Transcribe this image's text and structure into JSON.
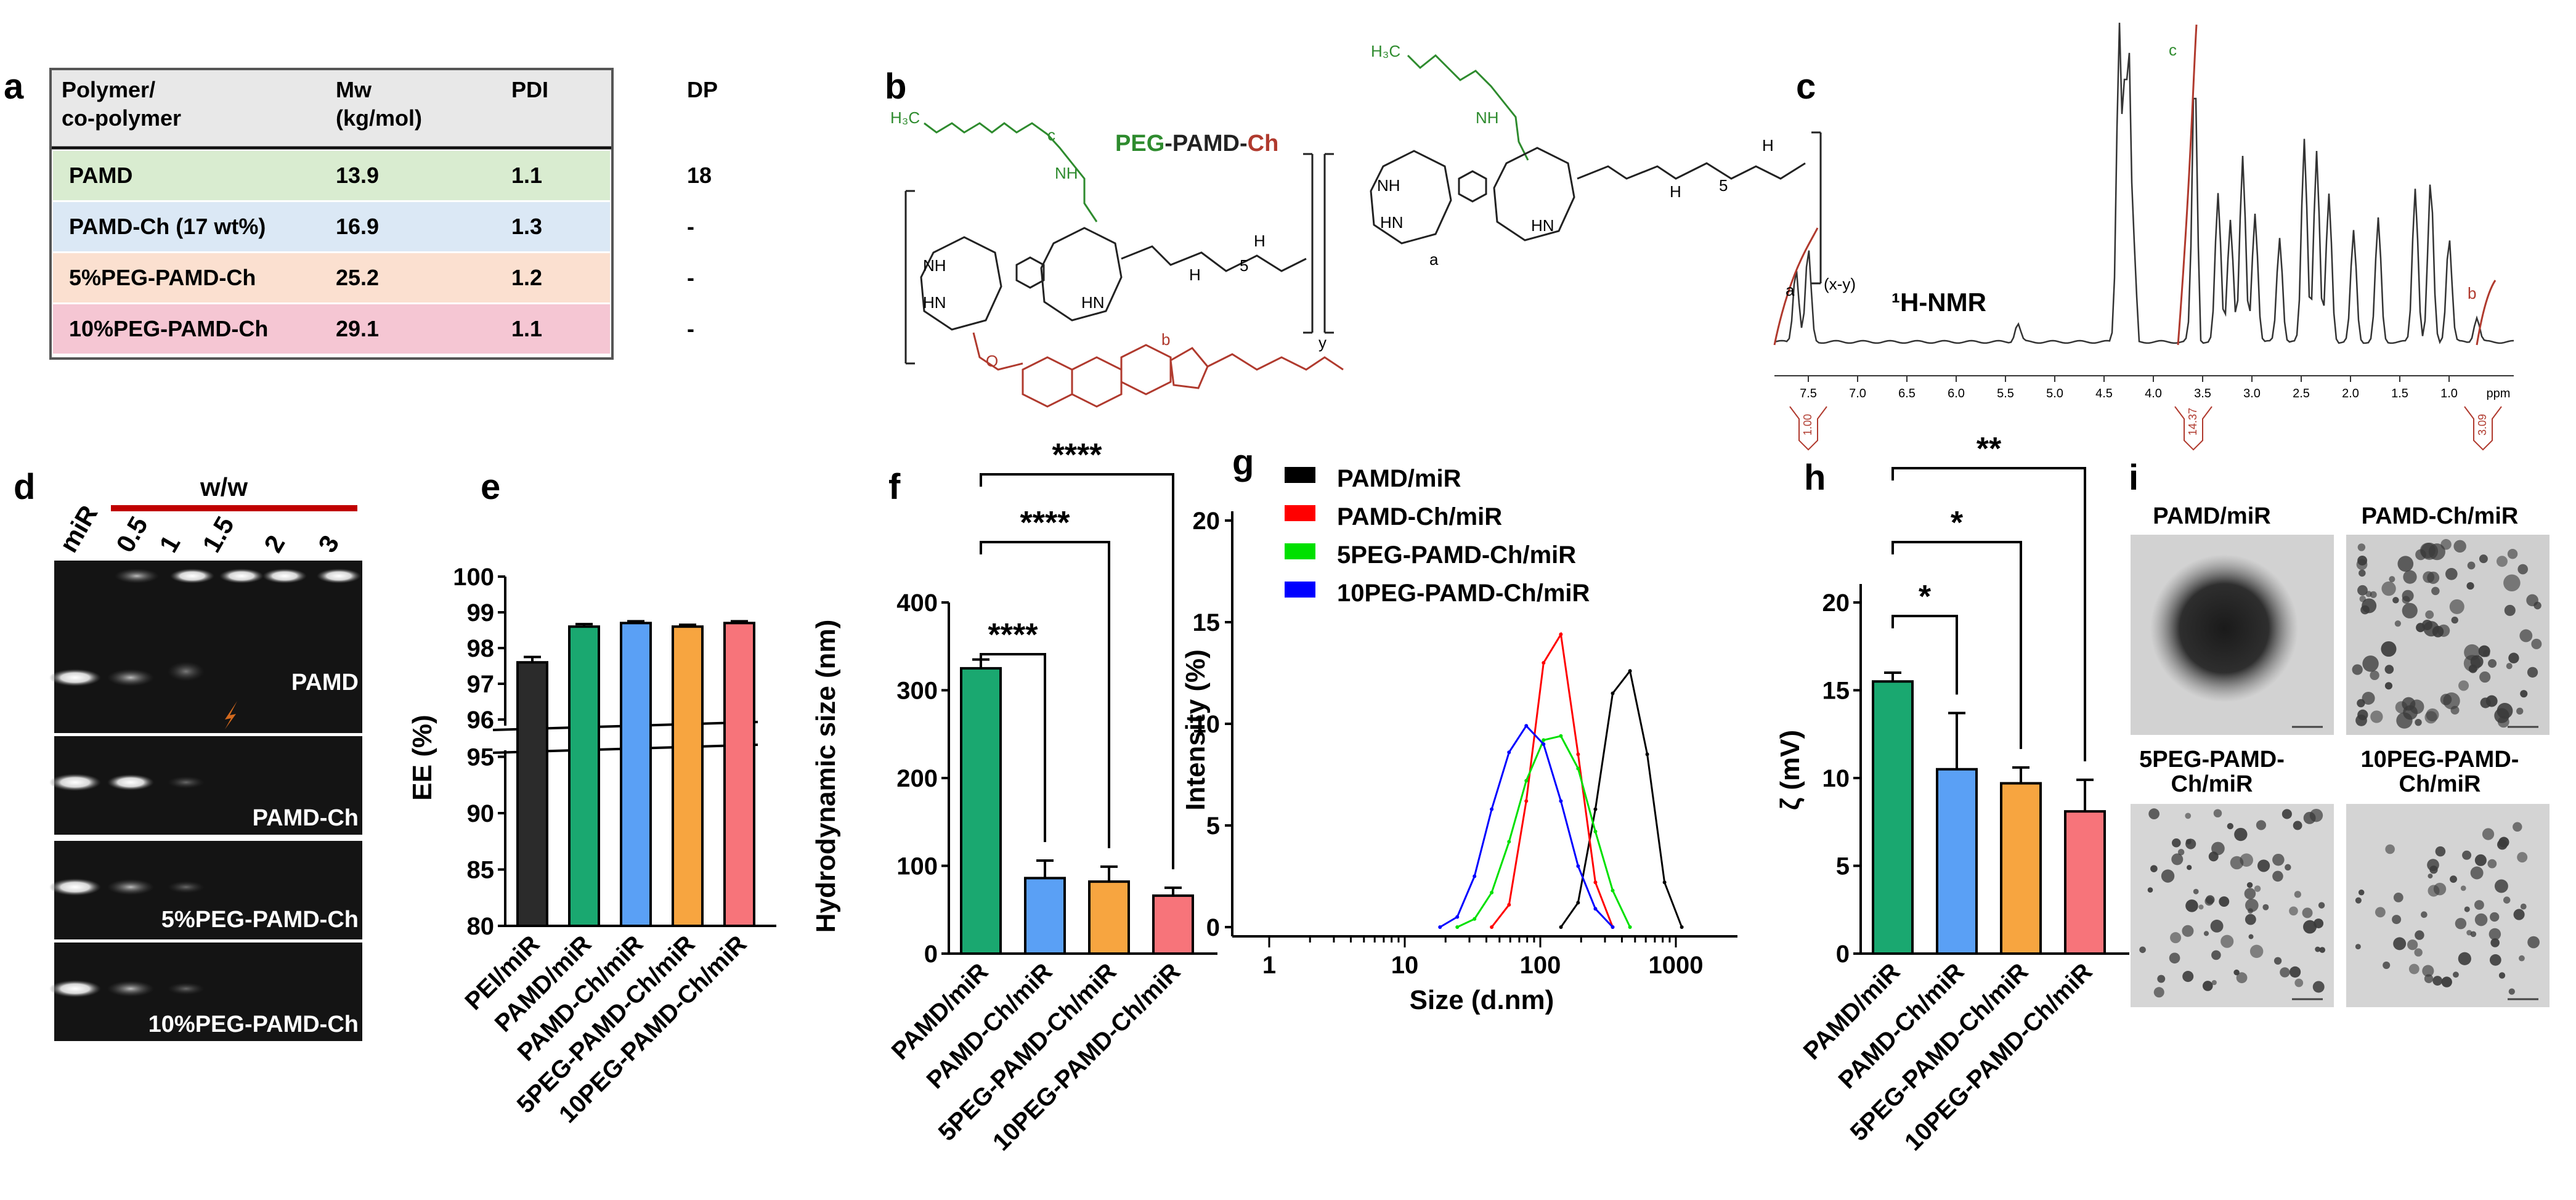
{
  "panels": {
    "a": {
      "letter": "a"
    },
    "b": {
      "letter": "b"
    },
    "c": {
      "letter": "c"
    },
    "d": {
      "letter": "d"
    },
    "e": {
      "letter": "e"
    },
    "f": {
      "letter": "f"
    },
    "g": {
      "letter": "g"
    },
    "h": {
      "letter": "h"
    },
    "i": {
      "letter": "i"
    }
  },
  "table": {
    "headers": [
      [
        "Polymer/",
        "co-polymer"
      ],
      [
        "Mw",
        "(kg/mol)"
      ],
      [
        "PDI"
      ],
      [
        "DP"
      ]
    ],
    "rows": [
      {
        "cells": [
          "PAMD",
          "13.9",
          "1.1",
          "18"
        ],
        "color": "#d9ecd0"
      },
      {
        "cells": [
          "PAMD-Ch (17 wt%)",
          "16.9",
          "1.3",
          "-"
        ],
        "color": "#dbe8f5"
      },
      {
        "cells": [
          "5%PEG-PAMD-Ch",
          "25.2",
          "1.2",
          "-"
        ],
        "color": "#fbe0d0"
      },
      {
        "cells": [
          "10%PEG-PAMD-Ch",
          "29.1",
          "1.1",
          "-"
        ],
        "color": "#f5c6d3"
      }
    ]
  },
  "structure": {
    "title_peg": "PEG",
    "title_mid": "-PAMD-",
    "title_ch": "Ch",
    "label_a": "a",
    "label_b": "b",
    "label_c": "c",
    "sub_y": "y",
    "sub_xy": "(x-y)",
    "sub_5": "5",
    "peg_h3c": "H₃C",
    "nh": "NH",
    "hn": "HN",
    "h": "H",
    "n": "N",
    "o": "O"
  },
  "nmr": {
    "label": "¹H-NMR",
    "peak_labels": [
      "a",
      "c",
      "b"
    ],
    "axis_ticks": [
      "7.5",
      "7.0",
      "6.5",
      "6.0",
      "5.5",
      "5.0",
      "4.5",
      "4.0",
      "3.5",
      "3.0",
      "2.5",
      "2.0",
      "1.5",
      "1.0",
      "ppm"
    ],
    "integrals": [
      "1.00",
      "14.37",
      "3.09"
    ]
  },
  "gel": {
    "title": "w/w",
    "lanes": [
      "miR",
      "0.5",
      "1",
      "1.5",
      "2",
      "3"
    ],
    "strips": [
      "PAMD",
      "PAMD-Ch",
      "5%PEG-PAMD-Ch",
      "10%PEG-PAMD-Ch"
    ]
  },
  "tem": {
    "labels": [
      "PAMD/miR",
      "PAMD-Ch/miR",
      "5PEG-PAMD-",
      "Ch/miR",
      "10PEG-PAMD-",
      "Ch/miR"
    ]
  },
  "colors": {
    "black": "#2b2b2b",
    "green": "#1aa870",
    "blue": "#5aa0f5",
    "orange": "#f7a540",
    "pink": "#f7747a"
  },
  "chart_data": [
    {
      "panel": "e",
      "type": "bar",
      "categories": [
        "PEI/miR",
        "PAMD/miR",
        "PAMD-Ch/miR",
        "5PEG-PAMD-Ch/miR",
        "10PEG-PAMD-Ch/miR"
      ],
      "values": [
        97.6,
        98.6,
        98.7,
        98.6,
        98.7
      ],
      "errors": [
        0.15,
        0.07,
        0.05,
        0.05,
        0.05
      ],
      "ylabel": "EE (%)",
      "axis_break": {
        "lower": [
          80,
          95
        ],
        "upper": [
          96,
          100
        ]
      },
      "yticks_upper": [
        96,
        97,
        98,
        99,
        100
      ],
      "yticks_lower": [
        80,
        85,
        90,
        95
      ],
      "colors": [
        "#2b2b2b",
        "#1aa870",
        "#5aa0f5",
        "#f7a540",
        "#f7747a"
      ]
    },
    {
      "panel": "f",
      "type": "bar",
      "categories": [
        "PAMD/miR",
        "PAMD-Ch/miR",
        "5PEG-PAMD-Ch/miR",
        "10PEG-PAMD-Ch/miR"
      ],
      "values": [
        325,
        86,
        82,
        66
      ],
      "errors": [
        10,
        20,
        17,
        9
      ],
      "ylabel": "Hydrodynamic size (nm)",
      "ylim": [
        0,
        400
      ],
      "yticks": [
        0,
        100,
        200,
        300,
        400
      ],
      "significance": [
        "****",
        "****",
        "****"
      ],
      "colors": [
        "#1aa870",
        "#5aa0f5",
        "#f7a540",
        "#f7747a"
      ]
    },
    {
      "panel": "g",
      "type": "line",
      "xlabel": "Size (d.nm)",
      "ylabel": "Intensity (%)",
      "xscale": "log",
      "xlim": [
        1,
        1500
      ],
      "ylim": [
        0,
        20
      ],
      "xticks": [
        "1",
        "10",
        "100",
        "1000"
      ],
      "yticks": [
        0,
        5,
        10,
        15,
        20
      ],
      "series": [
        {
          "name": "PAMD/miR",
          "color": "#000000",
          "x": [
            142,
            190,
            255,
            342,
            459,
            615,
            825,
            1106
          ],
          "y": [
            0,
            1.2,
            5.8,
            11.5,
            12.6,
            8.5,
            2.2,
            0
          ]
        },
        {
          "name": "PAMD-Ch/miR",
          "color": "#ff0000",
          "x": [
            43.8,
            58.8,
            78.8,
            105.7,
            141.8,
            190.1,
            255,
            342
          ],
          "y": [
            0,
            1.1,
            6.2,
            13.0,
            14.4,
            8.5,
            2.2,
            0
          ]
        },
        {
          "name": "5PEG-PAMD-Ch/miR",
          "color": "#00e000",
          "x": [
            24.4,
            32.7,
            43.8,
            58.8,
            78.8,
            105.7,
            141.8,
            190.1,
            255,
            342,
            459
          ],
          "y": [
            0,
            0.4,
            1.7,
            4.2,
            7.2,
            9.2,
            9.4,
            7.8,
            4.7,
            1.8,
            0
          ]
        },
        {
          "name": "10PEG-PAMD-Ch/miR",
          "color": "#0000ff",
          "x": [
            18.2,
            24.4,
            32.7,
            43.8,
            58.8,
            78.8,
            105.7,
            141.8,
            190.1,
            255,
            342
          ],
          "y": [
            0,
            0.5,
            2.5,
            5.8,
            8.6,
            9.9,
            9.0,
            6.2,
            3.0,
            0.9,
            0
          ]
        }
      ]
    },
    {
      "panel": "h",
      "type": "bar",
      "categories": [
        "PAMD/miR",
        "PAMD-Ch/miR",
        "5PEG-PAMD-Ch/miR",
        "10PEG-PAMD-Ch/miR"
      ],
      "values": [
        15.5,
        10.5,
        9.7,
        8.1
      ],
      "errors": [
        0.5,
        3.2,
        0.9,
        1.8
      ],
      "ylabel": "ζ (mV)",
      "ylim": [
        0,
        20
      ],
      "yticks": [
        0,
        5,
        10,
        15,
        20
      ],
      "significance": [
        "*",
        "*",
        "**"
      ],
      "colors": [
        "#1aa870",
        "#5aa0f5",
        "#f7a540",
        "#f7747a"
      ]
    }
  ]
}
